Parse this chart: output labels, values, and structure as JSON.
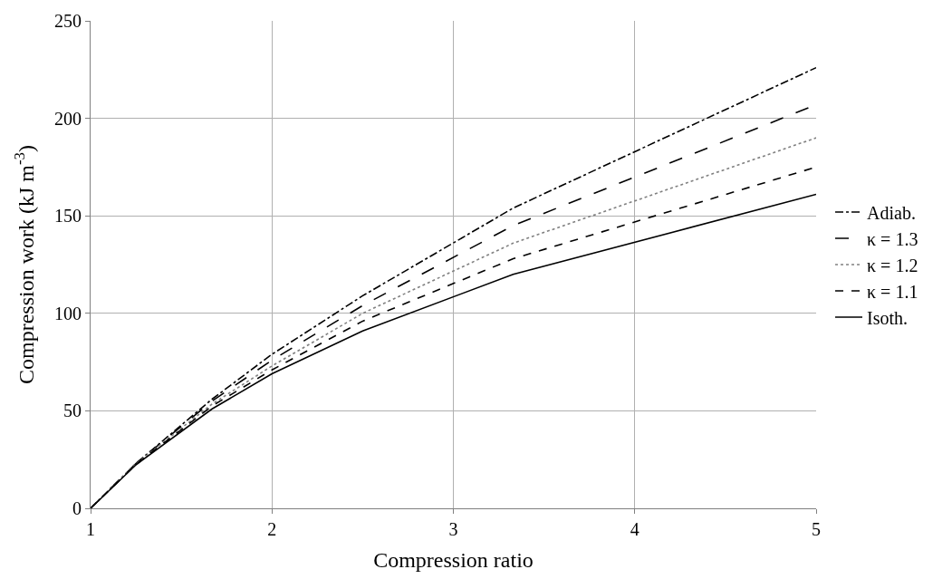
{
  "chart_data": {
    "type": "line",
    "xlabel": "Compression ratio",
    "ylabel": "Compression work (kJ m$^{-3}$)",
    "x": [
      1,
      1.25,
      1.67,
      2,
      2.5,
      3.33,
      5
    ],
    "xlim": [
      1,
      5
    ],
    "xticks": [
      1,
      2,
      3,
      4,
      5
    ],
    "ylim": [
      0,
      250
    ],
    "yticks": [
      0,
      50,
      100,
      150,
      200,
      250
    ],
    "grid": true,
    "legend": "right",
    "marker": "none",
    "series": [
      {
        "name": "Adiab.",
        "color": "#000000",
        "line_style": "dashdot",
        "values": [
          0,
          23,
          56,
          79,
          109,
          154,
          226
        ]
      },
      {
        "name": "κ = 1.3",
        "color": "#000000",
        "line_style": "longdash",
        "values": [
          0,
          23,
          55,
          76,
          104,
          145,
          207
        ]
      },
      {
        "name": "κ = 1.2",
        "color": "#808080",
        "line_style": "dotted",
        "values": [
          0,
          22.8,
          53.5,
          73,
          100,
          136,
          190
        ]
      },
      {
        "name": "κ = 1.1",
        "color": "#000000",
        "line_style": "dashed",
        "values": [
          0,
          22.5,
          52.5,
          71,
          96,
          128,
          175
        ]
      },
      {
        "name": "Isoth.",
        "color": "#000000",
        "line_style": "solid",
        "values": [
          0,
          22.3,
          51,
          69,
          91,
          120,
          161
        ]
      }
    ]
  }
}
